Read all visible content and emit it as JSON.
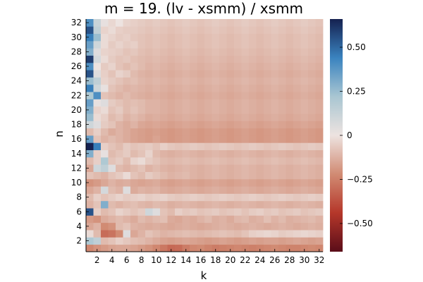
{
  "chart_data": {
    "type": "heatmap",
    "title": "m = 19. (lv - xsmm) / xsmm",
    "xlabel": "k",
    "ylabel": "n",
    "x_range": [
      1,
      32
    ],
    "y_range": [
      1,
      32
    ],
    "x_ticks": [
      "2",
      "4",
      "6",
      "8",
      "10",
      "12",
      "14",
      "16",
      "18",
      "20",
      "22",
      "24",
      "26",
      "28",
      "30",
      "32"
    ],
    "y_ticks": [
      "2",
      "4",
      "6",
      "8",
      "10",
      "12",
      "14",
      "16",
      "18",
      "20",
      "22",
      "24",
      "26",
      "28",
      "30",
      "32"
    ],
    "colorbar": {
      "range": [
        -0.66,
        0.66
      ],
      "ticks": [
        {
          "value": 0.5,
          "label": "0.50"
        },
        {
          "value": 0.25,
          "label": "0.25"
        },
        {
          "value": 0,
          "label": "0"
        },
        {
          "value": -0.25,
          "label": "−0.25"
        },
        {
          "value": -0.5,
          "label": "−0.50"
        }
      ],
      "colors": [
        "#5a0d19",
        "#b5372a",
        "#d18b73",
        "#ede3e0",
        "#a9c6d2",
        "#3a83bf",
        "#152150"
      ]
    },
    "grid": false,
    "legend": "none",
    "values": [
      [
        -0.23,
        -0.2,
        -0.18,
        -0.16,
        -0.15,
        -0.15,
        -0.16,
        -0.18,
        -0.2,
        -0.23,
        -0.27,
        -0.31,
        -0.3,
        -0.26,
        -0.23,
        -0.22,
        -0.24,
        -0.26,
        -0.25,
        -0.24,
        -0.23,
        -0.24,
        -0.25,
        -0.24,
        -0.23,
        -0.22,
        -0.23,
        -0.24,
        -0.24,
        -0.23,
        -0.22,
        -0.23
      ],
      [
        0.2,
        0.15,
        -0.1,
        -0.08,
        -0.05,
        -0.07,
        -0.09,
        -0.1,
        -0.12,
        -0.14,
        -0.16,
        -0.17,
        -0.16,
        -0.15,
        -0.16,
        -0.17,
        -0.18,
        -0.17,
        -0.16,
        -0.17,
        -0.18,
        -0.17,
        -0.16,
        -0.17,
        -0.16,
        -0.16,
        -0.17,
        -0.16,
        -0.15,
        -0.16,
        -0.17,
        -0.16
      ],
      [
        -0.02,
        -0.1,
        -0.3,
        -0.28,
        -0.22,
        0.05,
        -0.15,
        -0.12,
        -0.08,
        -0.1,
        -0.12,
        -0.11,
        -0.1,
        -0.09,
        -0.1,
        -0.11,
        -0.1,
        -0.09,
        -0.08,
        -0.09,
        -0.1,
        -0.08,
        -0.05,
        -0.04,
        -0.03,
        -0.04,
        -0.06,
        -0.05,
        -0.04,
        -0.03,
        -0.04,
        -0.05
      ],
      [
        -0.15,
        -0.12,
        -0.22,
        -0.2,
        -0.1,
        -0.08,
        -0.12,
        -0.13,
        -0.14,
        -0.13,
        -0.14,
        -0.15,
        -0.14,
        -0.13,
        -0.14,
        -0.15,
        -0.14,
        -0.13,
        -0.12,
        -0.13,
        -0.14,
        -0.13,
        -0.12,
        -0.13,
        -0.14,
        -0.13,
        -0.12,
        -0.13,
        -0.14,
        -0.13,
        -0.12,
        -0.13
      ],
      [
        -0.18,
        -0.2,
        -0.14,
        -0.12,
        -0.1,
        -0.12,
        -0.14,
        -0.1,
        -0.12,
        -0.1,
        -0.09,
        -0.14,
        -0.15,
        -0.13,
        -0.14,
        -0.12,
        -0.1,
        -0.13,
        -0.12,
        -0.14,
        -0.11,
        -0.1,
        -0.13,
        -0.12,
        -0.09,
        -0.12,
        -0.1,
        -0.13,
        -0.12,
        -0.11,
        -0.1,
        -0.12
      ],
      [
        0.55,
        -0.05,
        -0.1,
        -0.08,
        -0.04,
        -0.06,
        -0.08,
        -0.06,
        0.1,
        0.05,
        -0.08,
        -0.1,
        -0.05,
        -0.07,
        -0.06,
        -0.08,
        -0.07,
        -0.06,
        -0.08,
        -0.07,
        -0.06,
        -0.08,
        -0.06,
        -0.05,
        -0.07,
        -0.06,
        -0.08,
        -0.07,
        -0.06,
        -0.08,
        -0.07,
        -0.06
      ],
      [
        -0.12,
        -0.08,
        0.3,
        -0.1,
        -0.12,
        -0.1,
        -0.09,
        -0.11,
        -0.12,
        -0.1,
        -0.11,
        -0.13,
        -0.12,
        -0.11,
        -0.12,
        -0.13,
        -0.12,
        -0.11,
        -0.12,
        -0.13,
        -0.12,
        -0.11,
        -0.12,
        -0.13,
        -0.12,
        -0.11,
        -0.12,
        -0.13,
        -0.12,
        -0.11,
        -0.12,
        -0.13
      ],
      [
        -0.1,
        -0.05,
        -0.08,
        -0.06,
        -0.04,
        -0.06,
        -0.05,
        -0.04,
        -0.06,
        -0.05,
        -0.04,
        -0.06,
        -0.07,
        -0.06,
        -0.05,
        -0.06,
        -0.07,
        -0.06,
        -0.05,
        -0.06,
        -0.07,
        -0.06,
        -0.05,
        -0.06,
        -0.07,
        -0.06,
        -0.05,
        -0.06,
        -0.07,
        -0.06,
        -0.05,
        -0.06
      ],
      [
        -0.15,
        -0.12,
        0.08,
        -0.1,
        -0.12,
        0.05,
        -0.14,
        -0.12,
        -0.13,
        -0.12,
        -0.14,
        -0.15,
        -0.14,
        -0.13,
        -0.14,
        -0.15,
        -0.14,
        -0.13,
        -0.14,
        -0.15,
        -0.14,
        -0.13,
        -0.14,
        -0.15,
        -0.14,
        -0.13,
        -0.14,
        -0.15,
        -0.14,
        -0.13,
        -0.14,
        -0.15
      ],
      [
        -0.2,
        -0.18,
        -0.15,
        -0.12,
        -0.14,
        -0.13,
        -0.15,
        -0.16,
        -0.15,
        -0.14,
        -0.16,
        -0.17,
        -0.16,
        -0.15,
        -0.16,
        -0.17,
        -0.16,
        -0.15,
        -0.16,
        -0.17,
        -0.16,
        -0.15,
        -0.16,
        -0.17,
        -0.16,
        -0.15,
        -0.16,
        -0.17,
        -0.16,
        -0.15,
        -0.16,
        -0.17
      ],
      [
        -0.08,
        -0.1,
        -0.12,
        -0.08,
        -0.06,
        -0.02,
        -0.08,
        -0.1,
        -0.06,
        -0.08,
        -0.1,
        -0.12,
        -0.11,
        -0.1,
        -0.12,
        -0.13,
        -0.12,
        -0.11,
        -0.12,
        -0.13,
        -0.12,
        -0.11,
        -0.12,
        -0.13,
        -0.12,
        -0.11,
        -0.12,
        -0.13,
        -0.12,
        -0.11,
        -0.12,
        -0.13
      ],
      [
        -0.15,
        0.1,
        0.15,
        0.05,
        -0.1,
        -0.12,
        -0.1,
        -0.08,
        -0.12,
        -0.1,
        -0.12,
        -0.13,
        -0.12,
        -0.11,
        -0.12,
        -0.13,
        -0.12,
        -0.11,
        -0.12,
        -0.13,
        -0.12,
        -0.11,
        -0.12,
        -0.13,
        -0.12,
        -0.11,
        -0.12,
        -0.13,
        -0.12,
        -0.11,
        -0.12,
        -0.13
      ],
      [
        -0.1,
        -0.05,
        0.2,
        -0.08,
        -0.06,
        -0.1,
        -0.04,
        -0.02,
        -0.06,
        -0.08,
        -0.1,
        -0.11,
        -0.1,
        -0.09,
        -0.1,
        -0.11,
        -0.1,
        -0.09,
        -0.1,
        -0.11,
        -0.1,
        -0.09,
        -0.1,
        -0.11,
        -0.1,
        -0.09,
        -0.1,
        -0.11,
        -0.1,
        -0.09,
        -0.1,
        -0.11
      ],
      [
        0.3,
        -0.05,
        0.02,
        -0.1,
        -0.08,
        -0.06,
        -0.1,
        -0.08,
        -0.04,
        -0.1,
        -0.12,
        -0.13,
        -0.12,
        -0.11,
        -0.12,
        -0.13,
        -0.12,
        -0.11,
        -0.12,
        -0.13,
        -0.12,
        -0.11,
        -0.12,
        -0.13,
        -0.12,
        -0.11,
        -0.12,
        -0.13,
        -0.12,
        -0.11,
        -0.12,
        -0.13
      ],
      [
        0.66,
        0.45,
        -0.05,
        -0.08,
        -0.1,
        -0.06,
        -0.08,
        -0.07,
        -0.06,
        -0.08,
        -0.05,
        -0.07,
        -0.08,
        -0.07,
        -0.06,
        -0.07,
        -0.08,
        -0.07,
        -0.06,
        -0.07,
        -0.08,
        -0.07,
        -0.06,
        -0.07,
        -0.08,
        -0.07,
        -0.06,
        -0.07,
        -0.08,
        -0.07,
        -0.06,
        -0.07
      ],
      [
        0.35,
        -0.08,
        -0.12,
        -0.1,
        -0.12,
        -0.14,
        -0.16,
        -0.17,
        -0.18,
        -0.16,
        -0.18,
        -0.19,
        -0.18,
        -0.17,
        -0.18,
        -0.19,
        -0.18,
        -0.17,
        -0.18,
        -0.19,
        -0.18,
        -0.17,
        -0.18,
        -0.19,
        -0.18,
        -0.17,
        -0.18,
        -0.19,
        -0.18,
        -0.17,
        -0.18,
        -0.19
      ],
      [
        -0.1,
        -0.05,
        -0.1,
        -0.14,
        -0.12,
        -0.14,
        -0.16,
        -0.17,
        -0.18,
        -0.17,
        -0.18,
        -0.19,
        -0.18,
        -0.17,
        -0.18,
        -0.19,
        -0.18,
        -0.17,
        -0.18,
        -0.19,
        -0.18,
        -0.17,
        -0.18,
        -0.19,
        -0.18,
        -0.17,
        -0.18,
        -0.19,
        -0.18,
        -0.17,
        -0.18,
        -0.19
      ],
      [
        0.1,
        0.05,
        -0.06,
        -0.08,
        -0.12,
        -0.14,
        -0.12,
        -0.15,
        -0.16,
        -0.15,
        -0.16,
        -0.17,
        -0.16,
        -0.15,
        -0.16,
        -0.17,
        -0.16,
        -0.15,
        -0.16,
        -0.17,
        -0.16,
        -0.15,
        -0.16,
        -0.17,
        -0.16,
        -0.15,
        -0.16,
        -0.17,
        -0.16,
        -0.15,
        -0.16,
        -0.17
      ],
      [
        0.25,
        -0.02,
        -0.05,
        -0.1,
        -0.08,
        -0.12,
        -0.1,
        -0.12,
        -0.14,
        -0.13,
        -0.14,
        -0.15,
        -0.14,
        -0.13,
        -0.14,
        -0.15,
        -0.14,
        -0.13,
        -0.14,
        -0.15,
        -0.14,
        -0.13,
        -0.14,
        -0.15,
        -0.14,
        -0.13,
        -0.14,
        -0.15,
        -0.14,
        -0.13,
        -0.14,
        -0.15
      ],
      [
        0.3,
        -0.04,
        -0.02,
        -0.08,
        -0.06,
        -0.1,
        -0.08,
        -0.1,
        -0.12,
        -0.12,
        -0.13,
        -0.14,
        -0.13,
        -0.12,
        -0.13,
        -0.14,
        -0.13,
        -0.12,
        -0.13,
        -0.14,
        -0.13,
        -0.12,
        -0.13,
        -0.14,
        -0.13,
        -0.12,
        -0.13,
        -0.14,
        -0.13,
        -0.12,
        -0.13,
        -0.14
      ],
      [
        0.35,
        0.02,
        0.05,
        -0.06,
        -0.08,
        -0.1,
        -0.09,
        -0.1,
        -0.12,
        -0.12,
        -0.13,
        -0.14,
        -0.13,
        -0.12,
        -0.13,
        -0.14,
        -0.13,
        -0.12,
        -0.13,
        -0.14,
        -0.13,
        -0.12,
        -0.13,
        -0.14,
        -0.13,
        -0.12,
        -0.13,
        -0.14,
        -0.13,
        -0.12,
        -0.13,
        -0.14
      ],
      [
        0.2,
        0.4,
        -0.08,
        -0.1,
        -0.12,
        -0.1,
        -0.12,
        -0.13,
        -0.14,
        -0.13,
        -0.14,
        -0.15,
        -0.14,
        -0.13,
        -0.14,
        -0.15,
        -0.14,
        -0.13,
        -0.14,
        -0.15,
        -0.14,
        -0.13,
        -0.14,
        -0.15,
        -0.14,
        -0.13,
        -0.14,
        -0.15,
        -0.14,
        -0.13,
        -0.14,
        -0.15
      ],
      [
        0.45,
        0.1,
        0.02,
        -0.08,
        -0.1,
        -0.12,
        -0.11,
        -0.12,
        -0.13,
        -0.12,
        -0.13,
        -0.14,
        -0.13,
        -0.12,
        -0.13,
        -0.14,
        -0.13,
        -0.12,
        -0.13,
        -0.14,
        -0.13,
        -0.12,
        -0.13,
        -0.14,
        -0.13,
        -0.12,
        -0.13,
        -0.14,
        -0.13,
        -0.12,
        -0.13,
        -0.14
      ],
      [
        0.25,
        0.15,
        -0.04,
        -0.06,
        -0.08,
        -0.1,
        -0.09,
        -0.11,
        -0.12,
        -0.11,
        -0.12,
        -0.13,
        -0.12,
        -0.11,
        -0.12,
        -0.13,
        -0.12,
        -0.11,
        -0.12,
        -0.13,
        -0.12,
        -0.11,
        -0.12,
        -0.13,
        -0.12,
        -0.11,
        -0.12,
        -0.13,
        -0.12,
        -0.11,
        -0.12,
        -0.13
      ],
      [
        0.55,
        0.05,
        -0.05,
        -0.08,
        -0.04,
        -0.06,
        -0.1,
        -0.12,
        -0.13,
        -0.12,
        -0.13,
        -0.14,
        -0.13,
        -0.12,
        -0.13,
        -0.14,
        -0.13,
        -0.12,
        -0.13,
        -0.14,
        -0.13,
        -0.12,
        -0.13,
        -0.14,
        -0.13,
        -0.12,
        -0.13,
        -0.14,
        -0.13,
        -0.12,
        -0.13,
        -0.14
      ],
      [
        0.4,
        0.0,
        -0.06,
        -0.04,
        -0.08,
        -0.1,
        -0.08,
        -0.1,
        -0.12,
        -0.11,
        -0.12,
        -0.13,
        -0.12,
        -0.11,
        -0.12,
        -0.13,
        -0.12,
        -0.11,
        -0.12,
        -0.13,
        -0.12,
        -0.11,
        -0.12,
        -0.13,
        -0.12,
        -0.11,
        -0.12,
        -0.13,
        -0.12,
        -0.11,
        -0.12,
        -0.13
      ],
      [
        0.6,
        0.08,
        -0.02,
        -0.06,
        -0.08,
        -0.07,
        -0.09,
        -0.1,
        -0.11,
        -0.1,
        -0.11,
        -0.12,
        -0.11,
        -0.1,
        -0.11,
        -0.12,
        -0.11,
        -0.1,
        -0.11,
        -0.12,
        -0.11,
        -0.1,
        -0.11,
        -0.12,
        -0.11,
        -0.1,
        -0.11,
        -0.12,
        -0.11,
        -0.1,
        -0.11,
        -0.12
      ],
      [
        0.3,
        0.05,
        -0.04,
        -0.05,
        -0.06,
        -0.08,
        -0.07,
        -0.09,
        -0.1,
        -0.09,
        -0.1,
        -0.11,
        -0.1,
        -0.09,
        -0.1,
        -0.11,
        -0.1,
        -0.09,
        -0.1,
        -0.11,
        -0.1,
        -0.09,
        -0.1,
        -0.11,
        -0.1,
        -0.09,
        -0.1,
        -0.11,
        -0.1,
        -0.09,
        -0.1,
        -0.11
      ],
      [
        0.35,
        0.1,
        -0.02,
        -0.06,
        -0.04,
        -0.06,
        -0.05,
        -0.08,
        -0.09,
        -0.08,
        -0.09,
        -0.1,
        -0.09,
        -0.08,
        -0.09,
        -0.1,
        -0.09,
        -0.08,
        -0.09,
        -0.1,
        -0.09,
        -0.08,
        -0.09,
        -0.1,
        -0.09,
        -0.08,
        -0.09,
        -0.1,
        -0.09,
        -0.08,
        -0.09,
        -0.1
      ],
      [
        0.45,
        0.25,
        -0.02,
        -0.04,
        -0.06,
        -0.05,
        -0.07,
        -0.08,
        -0.09,
        -0.08,
        -0.09,
        -0.1,
        -0.09,
        -0.08,
        -0.09,
        -0.1,
        -0.09,
        -0.08,
        -0.09,
        -0.1,
        -0.09,
        -0.08,
        -0.09,
        -0.1,
        -0.09,
        -0.08,
        -0.09,
        -0.1,
        -0.09,
        -0.08,
        -0.09,
        -0.1
      ],
      [
        0.55,
        0.15,
        -0.04,
        -0.02,
        -0.05,
        -0.06,
        -0.06,
        -0.07,
        -0.08,
        -0.07,
        -0.08,
        -0.09,
        -0.08,
        -0.07,
        -0.08,
        -0.09,
        -0.08,
        -0.07,
        -0.08,
        -0.09,
        -0.08,
        -0.07,
        -0.08,
        -0.09,
        -0.08,
        -0.07,
        -0.08,
        -0.09,
        -0.08,
        -0.07,
        -0.08,
        -0.09
      ],
      [
        0.4,
        0.12,
        0.02,
        -0.03,
        0.0,
        -0.04,
        -0.05,
        -0.06,
        -0.07,
        -0.06,
        -0.07,
        -0.08,
        -0.07,
        -0.06,
        -0.07,
        -0.08,
        -0.07,
        -0.06,
        -0.07,
        -0.08,
        -0.07,
        -0.06,
        -0.07,
        -0.08,
        -0.07,
        -0.06,
        -0.07,
        -0.08,
        -0.07,
        -0.06,
        -0.07,
        -0.08
      ]
    ]
  }
}
